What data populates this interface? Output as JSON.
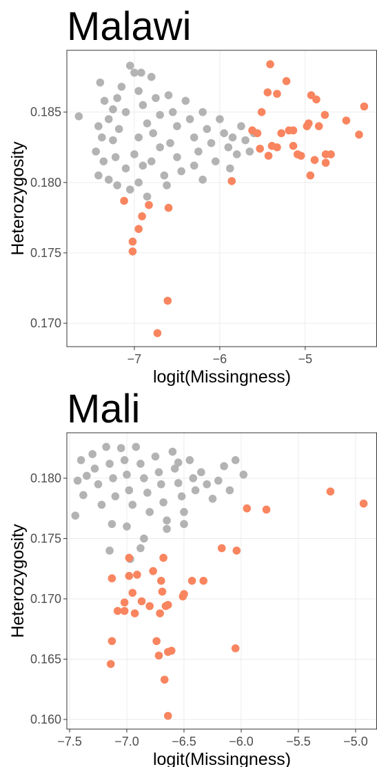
{
  "chart_data": [
    {
      "type": "scatter",
      "title": "Malawi",
      "xlabel": "logit(Missingness)",
      "ylabel": "Heterozygosity",
      "xlim": [
        -7.79,
        -4.16
      ],
      "ylim": [
        0.16834,
        0.18939
      ],
      "grid": true,
      "xticks": [
        {
          "value": -7,
          "label": "−7"
        },
        {
          "value": -6,
          "label": "−6"
        },
        {
          "value": -5,
          "label": "−5"
        }
      ],
      "yticks": [
        {
          "value": 0.17,
          "label": "0.170"
        },
        0.175,
        {
          "value": 0.18,
          "label": "0.180"
        },
        0.185
      ],
      "series": [
        {
          "color": "#b3b3b3",
          "x": [
            -7.65,
            -7.4,
            -7.35,
            -7.3,
            -7.42,
            -7.38,
            -7.45,
            -7.36,
            -7.42,
            -7.3,
            -7.25,
            -7.2,
            -7.15,
            -7.1,
            -7.18,
            -7.22,
            -7.1,
            -7.2,
            -7.05,
            -7.0,
            -6.95,
            -6.9,
            -6.85,
            -6.95,
            -7.0,
            -6.9,
            -6.95,
            -6.85,
            -6.8,
            -6.75,
            -6.7,
            -6.78,
            -6.7,
            -6.8,
            -6.65,
            -6.6,
            -6.55,
            -6.5,
            -6.58,
            -6.5,
            -6.45,
            -6.4,
            -6.35,
            -6.3,
            -6.25,
            -6.3,
            -6.2,
            -6.15,
            -6.1,
            -6.05,
            -6.0,
            -5.95,
            -5.9,
            -5.85,
            -5.8,
            -5.75,
            -5.7,
            -5.65,
            -5.6,
            -6.62,
            -6.2,
            -5.88,
            -7.05,
            -6.92,
            -7.25
          ],
          "y": [
            0.1847,
            0.1871,
            0.1858,
            0.1845,
            0.184,
            0.1832,
            0.1822,
            0.1815,
            0.1805,
            0.1802,
            0.183,
            0.186,
            0.1868,
            0.185,
            0.1838,
            0.1818,
            0.181,
            0.1798,
            0.1795,
            0.1878,
            0.1865,
            0.1855,
            0.1842,
            0.1832,
            0.182,
            0.1812,
            0.18,
            0.179,
            0.1875,
            0.186,
            0.1848,
            0.1835,
            0.1825,
            0.1815,
            0.1805,
            0.1862,
            0.185,
            0.184,
            0.1828,
            0.1818,
            0.1808,
            0.1858,
            0.1845,
            0.1832,
            0.1822,
            0.1812,
            0.185,
            0.1838,
            0.1828,
            0.1815,
            0.1845,
            0.1835,
            0.1825,
            0.1832,
            0.182,
            0.184,
            0.183,
            0.1822,
            0.1835,
            0.1798,
            0.1802,
            0.181,
            0.1883,
            0.1878,
            0.1852
          ]
        },
        {
          "color": "#f8855f",
          "x": [
            -5.41,
            -5.44,
            -5.33,
            -5.22,
            -5.51,
            -5.62,
            -5.56,
            -5.53,
            -5.39,
            -5.33,
            -5.43,
            -5.28,
            -5.19,
            -5.14,
            -5.14,
            -5.09,
            -5.05,
            -4.98,
            -4.96,
            -4.93,
            -4.87,
            -4.84,
            -4.89,
            -4.77,
            -4.76,
            -4.76,
            -4.7,
            -4.94,
            -4.52,
            -4.31,
            -4.37,
            -5.86,
            -7.12,
            -6.83,
            -6.91,
            -6.6,
            -6.95,
            -7.02,
            -7.02,
            -6.61,
            -6.73
          ],
          "y": [
            0.1884,
            0.1864,
            0.1863,
            0.1872,
            0.185,
            0.1837,
            0.1835,
            0.1824,
            0.1826,
            0.1825,
            0.1819,
            0.1835,
            0.1837,
            0.1837,
            0.1826,
            0.182,
            0.1819,
            0.184,
            0.1842,
            0.1862,
            0.1859,
            0.184,
            0.1816,
            0.1848,
            0.182,
            0.1814,
            0.182,
            0.1805,
            0.1844,
            0.1854,
            0.1834,
            0.1801,
            0.1787,
            0.1784,
            0.1776,
            0.1782,
            0.1767,
            0.1758,
            0.1751,
            0.1716,
            0.1693
          ]
        }
      ]
    },
    {
      "type": "scatter",
      "title": "Mali",
      "xlabel": "logit(Missingness)",
      "ylabel": "Heterozygosity",
      "xlim": [
        -7.524,
        -4.813
      ],
      "ylim": [
        0.1592,
        0.18377
      ],
      "grid": true,
      "xticks": [
        {
          "value": -7.5,
          "label": "−7.5"
        },
        {
          "value": -7,
          "label": "−7.0"
        },
        {
          "value": -6.5,
          "label": "−6.5"
        },
        {
          "value": -6,
          "label": "−6.0"
        },
        {
          "value": -5.5,
          "label": "−5.5"
        },
        {
          "value": -5,
          "label": "−5.0"
        }
      ],
      "yticks": [
        {
          "value": 0.16,
          "label": "0.160"
        },
        0.165,
        {
          "value": 0.17,
          "label": "0.170"
        },
        0.175,
        {
          "value": 0.18,
          "label": "0.180"
        }
      ],
      "series": [
        {
          "color": "#b3b3b3",
          "x": [
            -7.45,
            -7.43,
            -7.4,
            -7.35,
            -7.38,
            -7.3,
            -7.28,
            -7.25,
            -7.22,
            -7.18,
            -7.15,
            -7.12,
            -7.1,
            -7.13,
            -7.05,
            -7.02,
            -7.0,
            -6.98,
            -6.95,
            -7.0,
            -6.92,
            -6.88,
            -6.85,
            -6.82,
            -6.8,
            -6.85,
            -6.75,
            -6.72,
            -6.7,
            -6.68,
            -6.65,
            -6.6,
            -6.58,
            -6.55,
            -6.52,
            -6.5,
            -6.45,
            -6.42,
            -6.4,
            -6.35,
            -6.3,
            -6.25,
            -6.2,
            -6.15,
            -6.1,
            -6.05,
            -5.98,
            -7.15,
            -6.97,
            -6.88,
            -6.65,
            -6.5,
            -6.55
          ],
          "y": [
            0.1769,
            0.1798,
            0.1815,
            0.1802,
            0.1786,
            0.182,
            0.1808,
            0.1795,
            0.1778,
            0.1826,
            0.1812,
            0.18,
            0.1785,
            0.1762,
            0.1825,
            0.1815,
            0.1803,
            0.179,
            0.1778,
            0.176,
            0.1826,
            0.1812,
            0.18,
            0.1788,
            0.1772,
            0.175,
            0.1818,
            0.1805,
            0.1795,
            0.178,
            0.1765,
            0.1822,
            0.1808,
            0.1796,
            0.1785,
            0.1772,
            0.1815,
            0.18,
            0.179,
            0.1805,
            0.1795,
            0.1783,
            0.1798,
            0.181,
            0.179,
            0.1815,
            0.1803,
            0.174,
            0.1733,
            0.1742,
            0.1758,
            0.1762,
            0.1813
          ]
        },
        {
          "color": "#f8855f",
          "x": [
            -5.22,
            -4.93,
            -5.95,
            -5.78,
            -6.17,
            -6.04,
            -6.98,
            -6.68,
            -6.77,
            -7.13,
            -6.98,
            -6.91,
            -6.7,
            -6.43,
            -6.33,
            -6.95,
            -6.69,
            -6.51,
            -6.5,
            -7.02,
            -6.87,
            -6.64,
            -6.8,
            -6.66,
            -7.08,
            -7.02,
            -6.93,
            -6.71,
            -6.74,
            -7.13,
            -6.64,
            -6.61,
            -6.72,
            -6.05,
            -7.14,
            -6.67,
            -6.64
          ],
          "y": [
            0.1789,
            0.1779,
            0.1775,
            0.1774,
            0.1742,
            0.174,
            0.1734,
            0.1734,
            0.1723,
            0.1717,
            0.1719,
            0.172,
            0.1715,
            0.1715,
            0.1715,
            0.1705,
            0.1706,
            0.1702,
            0.1704,
            0.1697,
            0.1698,
            0.1695,
            0.1694,
            0.1694,
            0.169,
            0.169,
            0.1688,
            0.1688,
            0.1665,
            0.1665,
            0.1656,
            0.1657,
            0.1653,
            0.1659,
            0.1646,
            0.1633,
            0.1603
          ]
        }
      ]
    }
  ]
}
